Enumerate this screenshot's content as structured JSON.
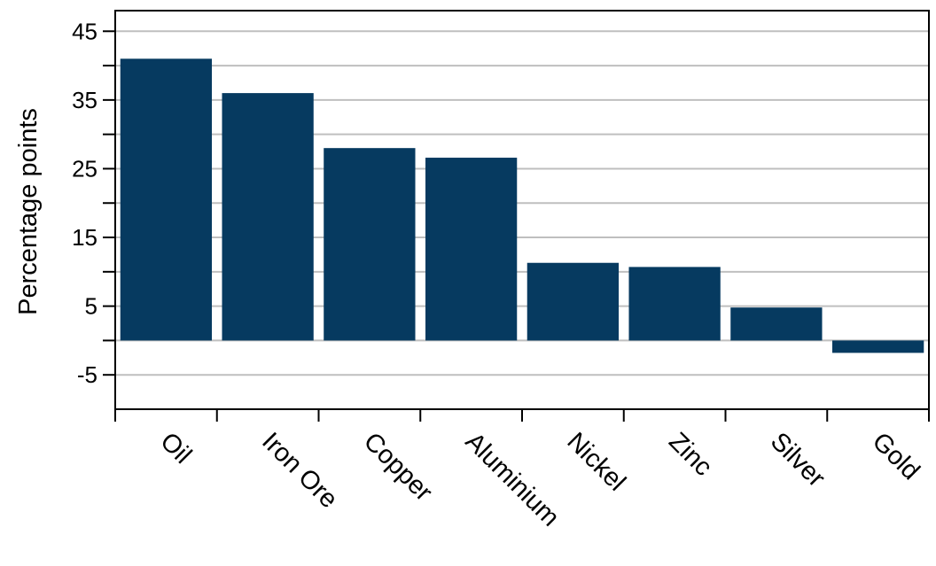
{
  "chart_data": {
    "type": "bar",
    "title": "",
    "xlabel": "",
    "ylabel": "Percentage points",
    "ylim": [
      -10,
      48
    ],
    "yticks": [
      -5,
      5,
      15,
      25,
      35,
      45
    ],
    "minor_ticks": [
      0,
      10,
      20,
      30,
      40
    ],
    "grid": true,
    "categories": [
      "Oil",
      "Iron Ore",
      "Copper",
      "Aluminium",
      "Nickel",
      "Zinc",
      "Silver",
      "Gold"
    ],
    "values": [
      41,
      36,
      28,
      26.6,
      11.3,
      10.7,
      4.8,
      -1.8
    ],
    "bar_color": "#063a60",
    "grid_color": "#bfbfbf"
  }
}
